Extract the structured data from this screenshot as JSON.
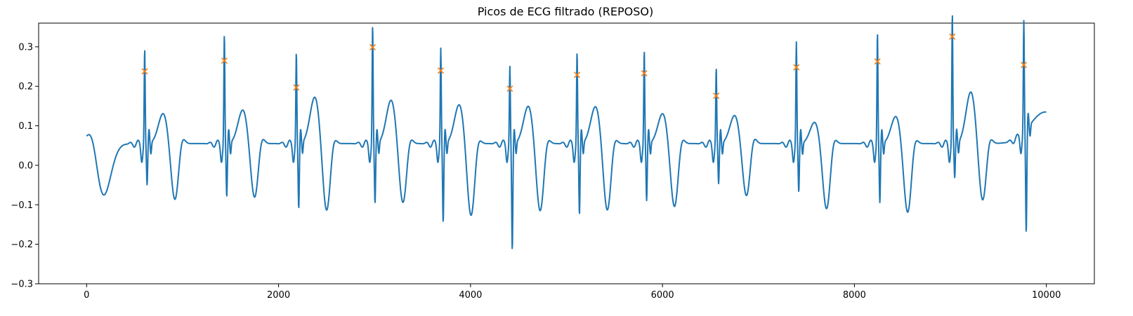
{
  "chart_data": {
    "type": "line",
    "title": "Picos de ECG filtrado (REPOSO)",
    "xlabel": "",
    "ylabel": "",
    "xlim": [
      -500,
      10500
    ],
    "ylim": [
      -0.3,
      0.36
    ],
    "x_ticks": [
      0,
      2000,
      4000,
      6000,
      8000,
      10000
    ],
    "x_tick_labels": [
      "0",
      "2000",
      "4000",
      "6000",
      "8000",
      "10000"
    ],
    "y_ticks": [
      -0.3,
      -0.2,
      -0.1,
      0.0,
      0.1,
      0.2,
      0.3
    ],
    "y_tick_labels": [
      "−0.3",
      "−0.2",
      "−0.1",
      "0.0",
      "0.1",
      "0.2",
      "0.3"
    ],
    "grid": false,
    "series": [
      {
        "kind": "line",
        "color": "#1f77b4",
        "beats": [
          {
            "t": 605,
            "amp": 0.24,
            "neg": -0.105,
            "tw": 0.078,
            "trough": -0.15
          },
          {
            "t": 1435,
            "amp": 0.277,
            "neg": -0.135,
            "tw": 0.087,
            "trough": -0.145
          },
          {
            "t": 2185,
            "amp": 0.231,
            "neg": -0.165,
            "tw": 0.12,
            "trough": -0.18
          },
          {
            "t": 2980,
            "amp": 0.3,
            "neg": -0.152,
            "tw": 0.112,
            "trough": -0.16
          },
          {
            "t": 3690,
            "amp": 0.242,
            "neg": -0.2,
            "tw": 0.101,
            "trough": -0.192
          },
          {
            "t": 4410,
            "amp": 0.196,
            "neg": -0.27,
            "tw": 0.097,
            "trough": -0.18
          },
          {
            "t": 5110,
            "amp": 0.232,
            "neg": -0.18,
            "tw": 0.096,
            "trough": -0.178
          },
          {
            "t": 5810,
            "amp": 0.236,
            "neg": -0.145,
            "tw": 0.078,
            "trough": -0.168
          },
          {
            "t": 6560,
            "amp": 0.192,
            "neg": -0.102,
            "tw": 0.073,
            "trough": -0.14
          },
          {
            "t": 7395,
            "amp": 0.258,
            "neg": -0.123,
            "tw": 0.056,
            "trough": -0.172
          },
          {
            "t": 8240,
            "amp": 0.281,
            "neg": -0.15,
            "tw": 0.071,
            "trough": -0.182
          },
          {
            "t": 9020,
            "amp": 0.33,
            "neg": -0.087,
            "tw": 0.133,
            "trough": -0.155
          },
          {
            "t": 9765,
            "amp": 0.282,
            "neg": -0.262,
            "tw": null,
            "trough": null
          }
        ]
      },
      {
        "kind": "scatter",
        "marker": "x",
        "color": "#ff7f0e",
        "points": [
          [
            605,
            0.238
          ],
          [
            1435,
            0.265
          ],
          [
            2185,
            0.197
          ],
          [
            2980,
            0.299
          ],
          [
            3690,
            0.24
          ],
          [
            4410,
            0.194
          ],
          [
            5110,
            0.229
          ],
          [
            5810,
            0.233
          ],
          [
            6560,
            0.176
          ],
          [
            7395,
            0.248
          ],
          [
            8240,
            0.263
          ],
          [
            9020,
            0.326
          ],
          [
            9765,
            0.254
          ]
        ]
      }
    ]
  }
}
